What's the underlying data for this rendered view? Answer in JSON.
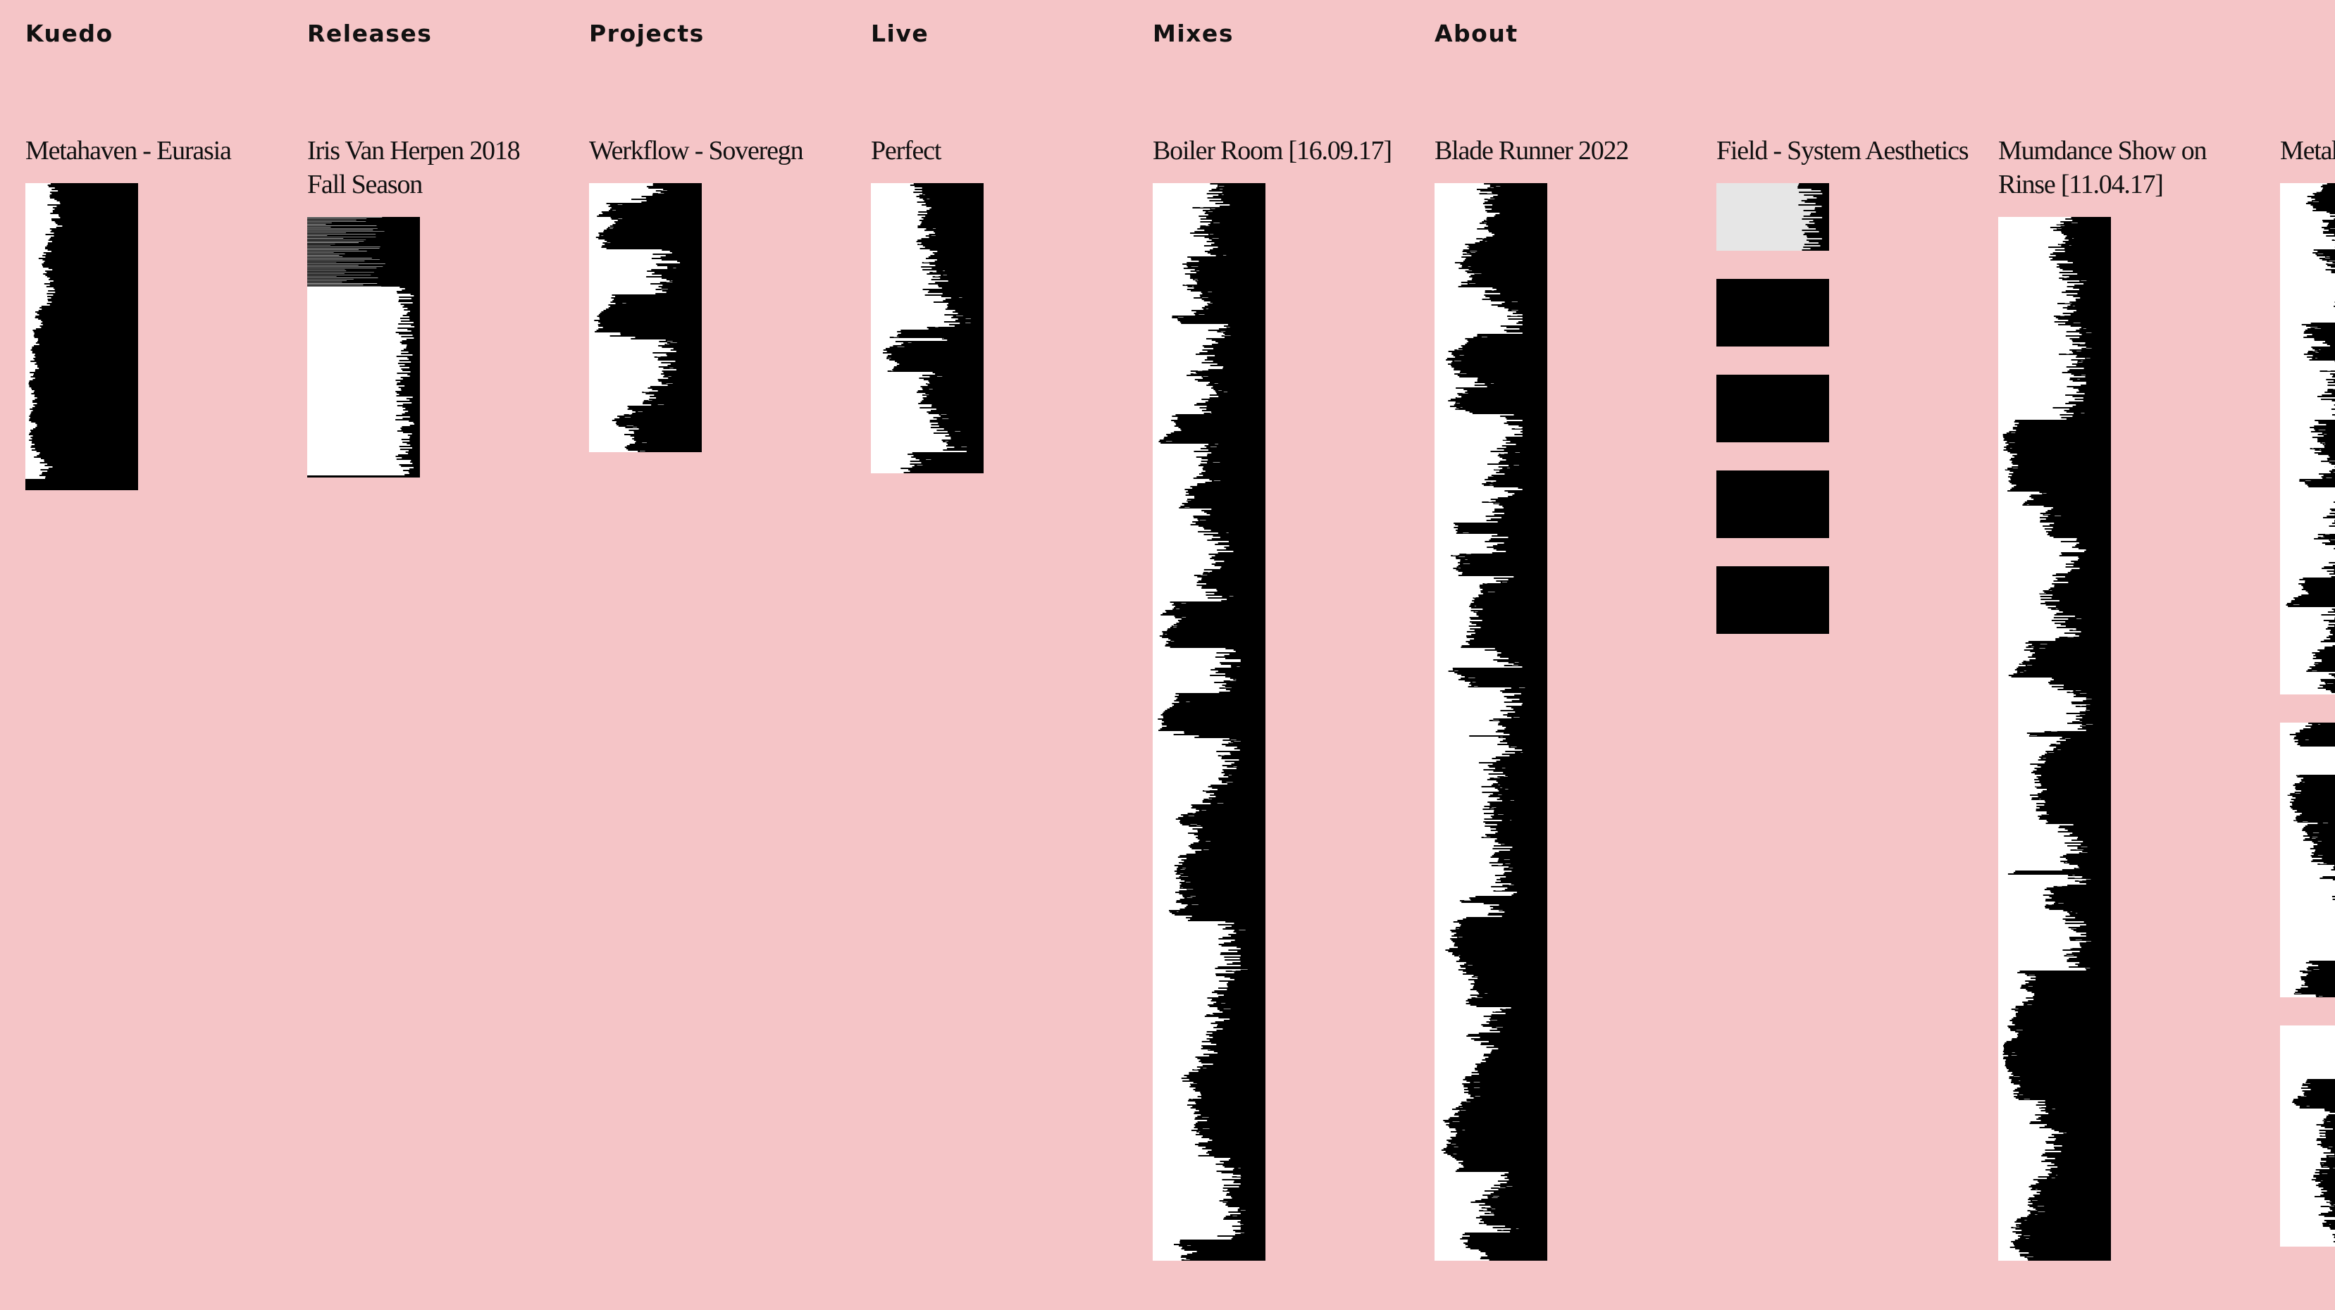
{
  "nav": {
    "kuedo": "Kuedo",
    "releases": "Releases",
    "projects": "Projects",
    "live": "Live",
    "mixes": "Mixes",
    "about": "About"
  },
  "tracks": [
    "Metahaven - Eurasia",
    "Iris Van Herpen 2018 Fall Season",
    "Werkflow - Soveregn",
    "Perfect",
    "Boiler Room [16.09.17]",
    "Blade Runner 2022",
    "Field - System Aesthetics",
    "Mumdance Show on Rinse [11.04.17]",
    "Metahaven - Eurasia"
  ],
  "colors": {
    "background": "#f5c5c7",
    "text": "#111111",
    "waveform_dark": "#000000",
    "waveform_light": "#ffffff"
  }
}
